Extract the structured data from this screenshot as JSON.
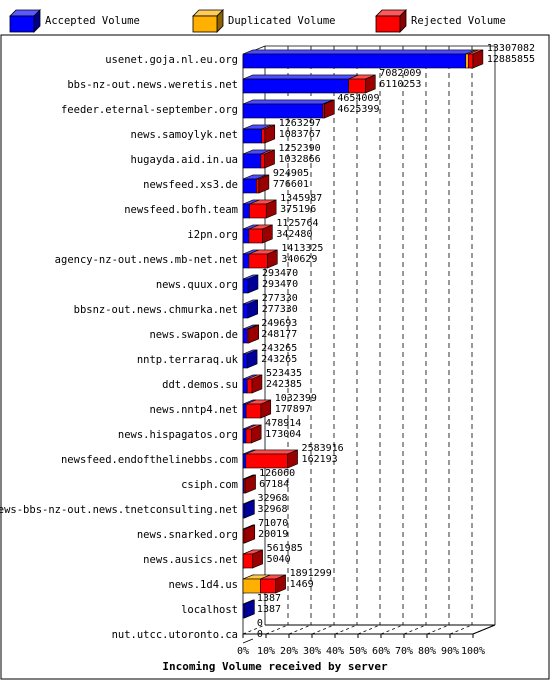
{
  "legend": [
    {
      "key": "accepted",
      "label": "Accepted Volume",
      "color": "#0000ff"
    },
    {
      "key": "duplicated",
      "label": "Duplicated Volume",
      "color": "#ffb000"
    },
    {
      "key": "rejected",
      "label": "Rejected Volume",
      "color": "#ff0000"
    }
  ],
  "chart_data": {
    "type": "bar",
    "orientation": "horizontal",
    "stacked": true,
    "title": "",
    "xlabel": "Incoming Volume received by server",
    "ylabel": "",
    "xlim": [
      0,
      100
    ],
    "xunit": "percent",
    "x_ticks": [
      "0%",
      "10%",
      "20%",
      "30%",
      "40%",
      "50%",
      "60%",
      "70%",
      "80%",
      "90%",
      "100%"
    ],
    "grid": true,
    "legend_position": "top",
    "max_total": 13307082,
    "rows": [
      {
        "server": "usenet.goja.nl.eu.org",
        "total": 13307082,
        "accepted": 12885855,
        "duplicated": 150000,
        "rejected": 271227
      },
      {
        "server": "bbs-nz-out.news.weretis.net",
        "total": 7082009,
        "accepted": 6110253,
        "duplicated": 0,
        "rejected": 971756
      },
      {
        "server": "feeder.eternal-september.org",
        "total": 4654009,
        "accepted": 4625399,
        "duplicated": 0,
        "rejected": 28610
      },
      {
        "server": "news.samoylyk.net",
        "total": 1263297,
        "accepted": 1083767,
        "duplicated": 0,
        "rejected": 179530
      },
      {
        "server": "hugayda.aid.in.ua",
        "total": 1252390,
        "accepted": 1032866,
        "duplicated": 0,
        "rejected": 219524
      },
      {
        "server": "newsfeed.xs3.de",
        "total": 924905,
        "accepted": 776601,
        "duplicated": 0,
        "rejected": 148304
      },
      {
        "server": "newsfeed.bofh.team",
        "total": 1345987,
        "accepted": 375196,
        "duplicated": 0,
        "rejected": 970791
      },
      {
        "server": "i2pn.org",
        "total": 1125764,
        "accepted": 342480,
        "duplicated": 0,
        "rejected": 783284
      },
      {
        "server": "agency-nz-out.news.mb-net.net",
        "total": 1413325,
        "accepted": 340629,
        "duplicated": 0,
        "rejected": 1072696
      },
      {
        "server": "news.quux.org",
        "total": 293470,
        "accepted": 293470,
        "duplicated": 0,
        "rejected": 0
      },
      {
        "server": "bbsnz-out.news.chmurka.net",
        "total": 277330,
        "accepted": 277330,
        "duplicated": 0,
        "rejected": 0
      },
      {
        "server": "news.swapon.de",
        "total": 249693,
        "accepted": 248177,
        "duplicated": 0,
        "rejected": 1516
      },
      {
        "server": "nntp.terraraq.uk",
        "total": 243265,
        "accepted": 243265,
        "duplicated": 0,
        "rejected": 0
      },
      {
        "server": "ddt.demos.su",
        "total": 523435,
        "accepted": 242385,
        "duplicated": 0,
        "rejected": 281050
      },
      {
        "server": "news.nntp4.net",
        "total": 1032399,
        "accepted": 177897,
        "duplicated": 0,
        "rejected": 854502
      },
      {
        "server": "news.hispagatos.org",
        "total": 478914,
        "accepted": 173004,
        "duplicated": 0,
        "rejected": 305910
      },
      {
        "server": "newsfeed.endofthelinebbs.com",
        "total": 2583916,
        "accepted": 162193,
        "duplicated": 0,
        "rejected": 2421723
      },
      {
        "server": "csiph.com",
        "total": 126060,
        "accepted": 67184,
        "duplicated": 0,
        "rejected": 58876
      },
      {
        "server": "news-bbs-nz-out.news.tnetconsulting.net",
        "total": 32968,
        "accepted": 32968,
        "duplicated": 0,
        "rejected": 0
      },
      {
        "server": "news.snarked.org",
        "total": 71070,
        "accepted": 20019,
        "duplicated": 0,
        "rejected": 51051
      },
      {
        "server": "news.ausics.net",
        "total": 561985,
        "accepted": 5040,
        "duplicated": 0,
        "rejected": 556945
      },
      {
        "server": "news.1d4.us",
        "total": 1891299,
        "accepted": 1469,
        "duplicated": 1000000,
        "rejected": 889830
      },
      {
        "server": "localhost",
        "total": 1387,
        "accepted": 1387,
        "duplicated": 0,
        "rejected": 0
      },
      {
        "server": "nut.utcc.utoronto.ca",
        "total": 0,
        "accepted": 0,
        "duplicated": 0,
        "rejected": 0
      }
    ]
  }
}
